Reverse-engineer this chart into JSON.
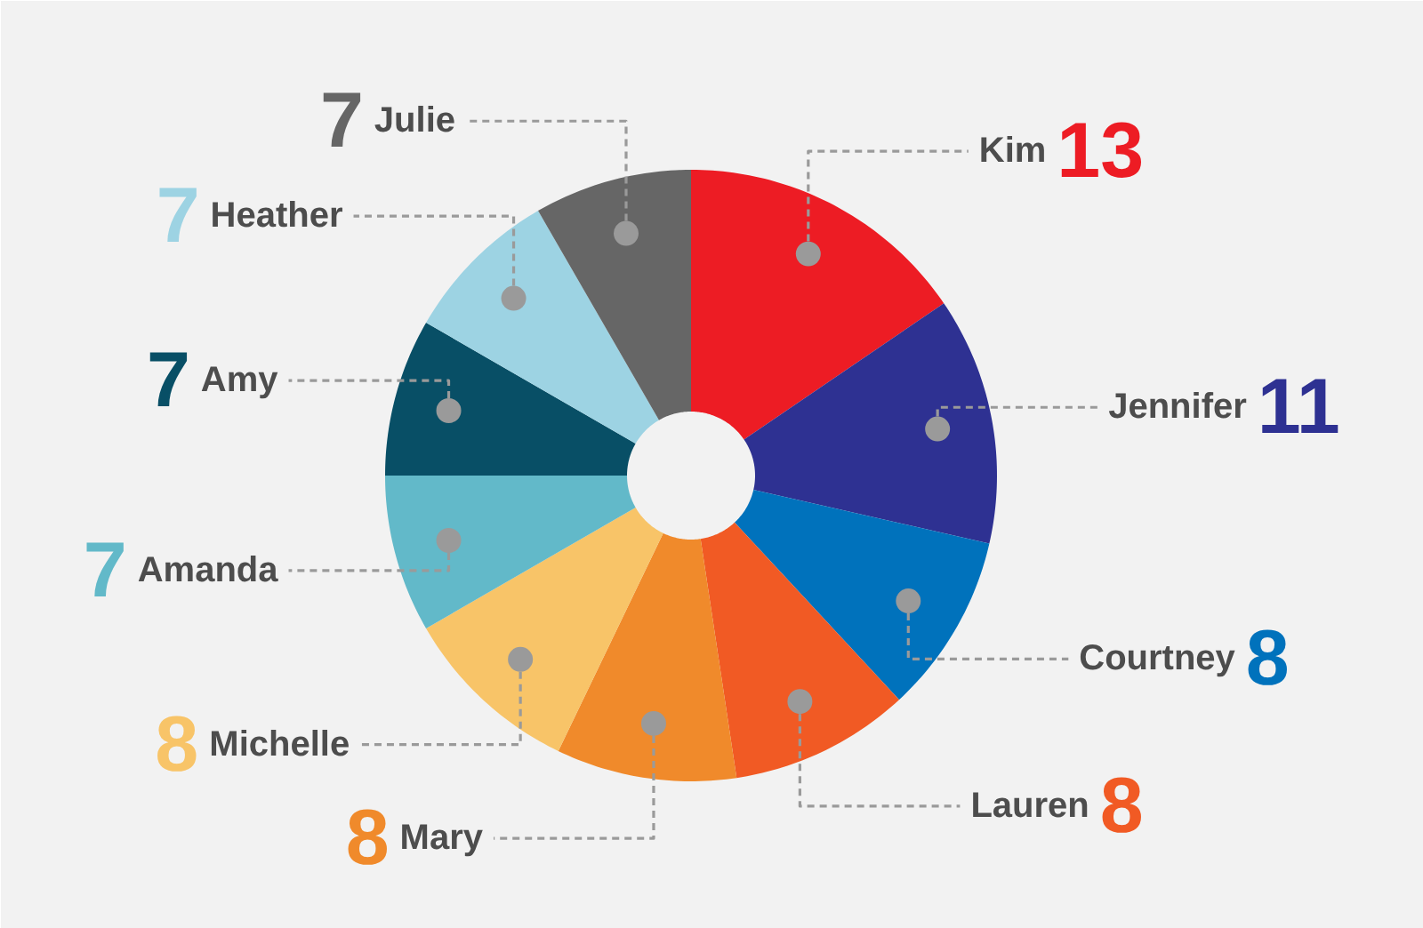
{
  "chart_data": {
    "type": "donut",
    "categories": [
      "Kim",
      "Jennifer",
      "Courtney",
      "Lauren",
      "Mary",
      "Michelle",
      "Amanda",
      "Amy",
      "Heather",
      "Julie"
    ],
    "values": [
      13,
      11,
      8,
      8,
      8,
      8,
      7,
      7,
      7,
      7
    ],
    "colors": [
      "#ed1c24",
      "#2e3192",
      "#0072bc",
      "#f15a24",
      "#f08a2b",
      "#f8c468",
      "#62b9c9",
      "#084f66",
      "#9dd3e3",
      "#666666"
    ],
    "data_labels": true
  }
}
